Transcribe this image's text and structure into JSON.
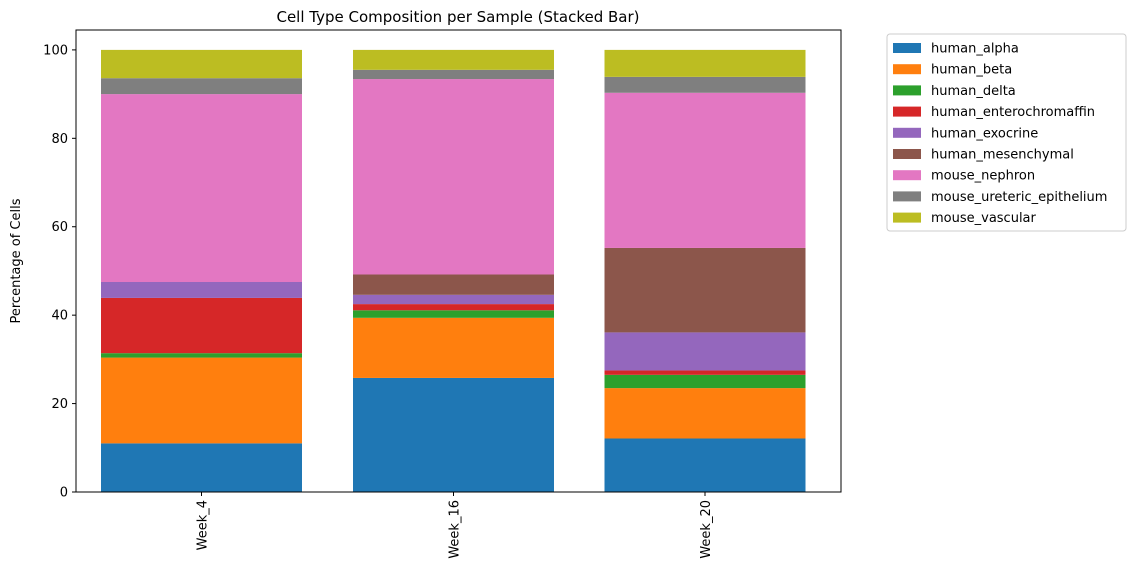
{
  "chart_data": {
    "type": "bar",
    "stacked": true,
    "title": "Cell Type Composition per Sample (Stacked Bar)",
    "xlabel": "",
    "ylabel": "Percentage of Cells",
    "ylim": [
      0,
      104.5
    ],
    "yticks": [
      0,
      20,
      40,
      60,
      80,
      100
    ],
    "grid": false,
    "legend_position": "outside-top-right",
    "categories": [
      "Week_4",
      "Week_16",
      "Week_20"
    ],
    "series": [
      {
        "name": "human_alpha",
        "color": "#1f77b4",
        "values": [
          11.0,
          25.8,
          12.1
        ]
      },
      {
        "name": "human_beta",
        "color": "#ff7f0e",
        "values": [
          19.4,
          13.6,
          11.4
        ]
      },
      {
        "name": "human_delta",
        "color": "#2ca02c",
        "values": [
          1.0,
          1.7,
          3.0
        ]
      },
      {
        "name": "human_enterochromaffin",
        "color": "#d62728",
        "values": [
          12.5,
          1.4,
          1.0
        ]
      },
      {
        "name": "human_exocrine",
        "color": "#9467bd",
        "values": [
          3.6,
          2.1,
          8.6
        ]
      },
      {
        "name": "human_mesenchymal",
        "color": "#8c564b",
        "values": [
          0.0,
          4.6,
          19.1
        ]
      },
      {
        "name": "mouse_nephron",
        "color": "#e377c2",
        "values": [
          42.5,
          44.2,
          35.1
        ]
      },
      {
        "name": "mouse_ureteric_epithelium",
        "color": "#7f7f7f",
        "values": [
          3.6,
          2.1,
          3.6
        ]
      },
      {
        "name": "mouse_vascular",
        "color": "#bcbd22",
        "values": [
          6.4,
          4.5,
          6.1
        ]
      }
    ]
  }
}
